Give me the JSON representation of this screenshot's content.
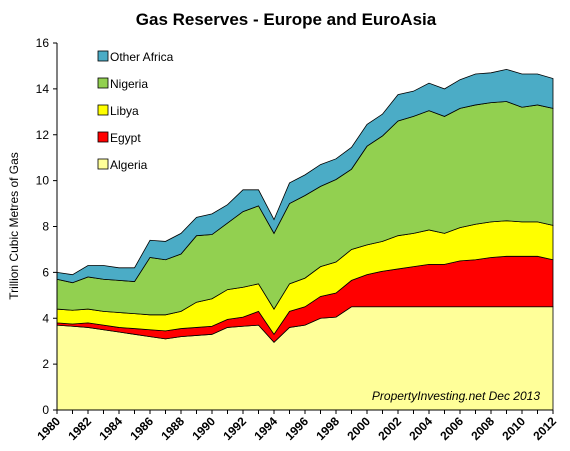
{
  "chart_data": {
    "type": "area",
    "stacked": true,
    "title": "Gas Reserves - Europe and EuroAsia",
    "xlabel": "",
    "ylabel": "Trillion Cubic Metres of Gas",
    "ylim": [
      0,
      16
    ],
    "yticks": [
      0,
      2,
      4,
      6,
      8,
      10,
      12,
      14,
      16
    ],
    "x": [
      1980,
      1981,
      1982,
      1983,
      1984,
      1985,
      1986,
      1987,
      1988,
      1989,
      1990,
      1991,
      1992,
      1993,
      1994,
      1995,
      1996,
      1997,
      1998,
      1999,
      2000,
      2001,
      2002,
      2003,
      2004,
      2005,
      2006,
      2007,
      2008,
      2009,
      2010,
      2011,
      2012
    ],
    "xticks": [
      "1980",
      "1982",
      "1984",
      "1986",
      "1988",
      "1990",
      "1992",
      "1994",
      "1996",
      "1998",
      "2000",
      "2002",
      "2004",
      "2006",
      "2008",
      "2010",
      "2012"
    ],
    "grid": false,
    "legend_position": "top-left",
    "series": [
      {
        "name": "Algeria",
        "color": "#FFFF99",
        "values": [
          3.7,
          3.65,
          3.6,
          3.5,
          3.4,
          3.3,
          3.2,
          3.1,
          3.2,
          3.25,
          3.3,
          3.6,
          3.65,
          3.7,
          2.95,
          3.6,
          3.7,
          4.0,
          4.05,
          4.5,
          4.5,
          4.5,
          4.5,
          4.5,
          4.5,
          4.5,
          4.5,
          4.5,
          4.5,
          4.5,
          4.5,
          4.5,
          4.5
        ]
      },
      {
        "name": "Egypt",
        "color": "#FF0000",
        "values": [
          0.1,
          0.1,
          0.2,
          0.2,
          0.2,
          0.25,
          0.3,
          0.35,
          0.35,
          0.35,
          0.35,
          0.35,
          0.4,
          0.6,
          0.35,
          0.7,
          0.8,
          0.95,
          1.05,
          1.15,
          1.4,
          1.55,
          1.65,
          1.75,
          1.85,
          1.85,
          2.0,
          2.05,
          2.15,
          2.2,
          2.2,
          2.2,
          2.05
        ]
      },
      {
        "name": "Libya",
        "color": "#FFFF00",
        "values": [
          0.6,
          0.6,
          0.6,
          0.6,
          0.65,
          0.65,
          0.65,
          0.7,
          0.75,
          1.1,
          1.2,
          1.3,
          1.3,
          1.2,
          1.1,
          1.2,
          1.25,
          1.3,
          1.35,
          1.35,
          1.3,
          1.3,
          1.45,
          1.45,
          1.5,
          1.35,
          1.45,
          1.55,
          1.55,
          1.55,
          1.5,
          1.5,
          1.5
        ]
      },
      {
        "name": "Nigeria",
        "color": "#92D050",
        "values": [
          1.3,
          1.2,
          1.4,
          1.4,
          1.4,
          1.4,
          2.5,
          2.4,
          2.5,
          2.9,
          2.8,
          2.9,
          3.3,
          3.4,
          3.3,
          3.5,
          3.6,
          3.5,
          3.6,
          3.5,
          4.3,
          4.6,
          5.0,
          5.1,
          5.2,
          5.1,
          5.2,
          5.2,
          5.2,
          5.2,
          5.0,
          5.1,
          5.1
        ]
      },
      {
        "name": "Other Africa",
        "color": "#4BACC6",
        "values": [
          0.3,
          0.35,
          0.5,
          0.6,
          0.55,
          0.6,
          0.75,
          0.8,
          0.9,
          0.8,
          0.9,
          0.8,
          0.95,
          0.7,
          0.6,
          0.9,
          0.9,
          0.95,
          0.9,
          0.95,
          0.95,
          0.95,
          1.15,
          1.1,
          1.2,
          1.2,
          1.25,
          1.35,
          1.3,
          1.4,
          1.45,
          1.35,
          1.3
        ]
      }
    ],
    "annotation": "PropertyInvesting.net  Dec 2013"
  }
}
